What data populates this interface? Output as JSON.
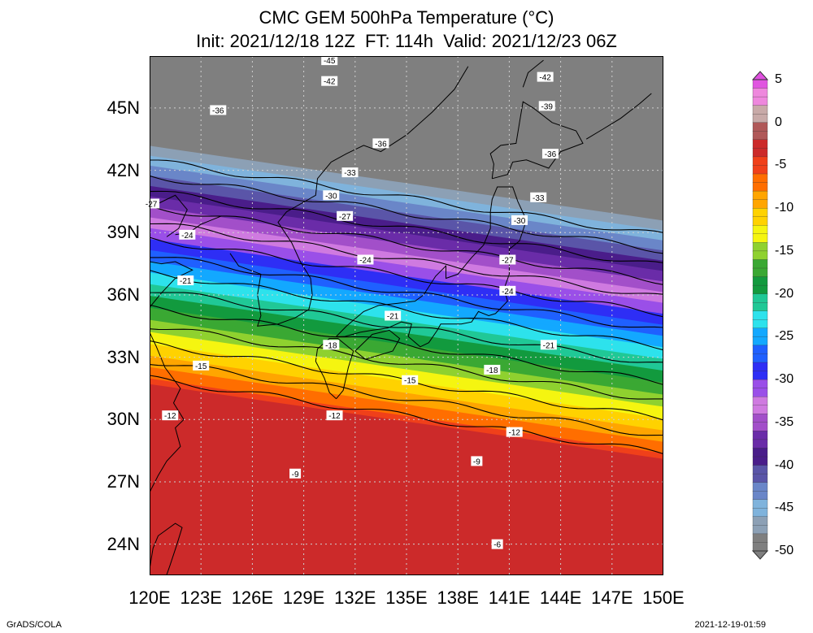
{
  "title": {
    "line1": "CMC GEM 500hPa Temperature (°C)",
    "line2": "Init: 2021/12/18 12Z  FT: 114h  Valid: 2021/12/23 06Z"
  },
  "map": {
    "lon_range": [
      120,
      150
    ],
    "lat_range": [
      22.5,
      47.5
    ],
    "lat_ticks": [
      {
        "value": 45,
        "label": "45N"
      },
      {
        "value": 42,
        "label": "42N"
      },
      {
        "value": 39,
        "label": "39N"
      },
      {
        "value": 36,
        "label": "36N"
      },
      {
        "value": 33,
        "label": "33N"
      },
      {
        "value": 30,
        "label": "30N"
      },
      {
        "value": 27,
        "label": "27N"
      },
      {
        "value": 24,
        "label": "24N"
      }
    ],
    "lon_ticks": [
      {
        "value": 120,
        "label": "120E"
      },
      {
        "value": 123,
        "label": "123E"
      },
      {
        "value": 126,
        "label": "126E"
      },
      {
        "value": 129,
        "label": "129E"
      },
      {
        "value": 132,
        "label": "132E"
      },
      {
        "value": 135,
        "label": "135E"
      },
      {
        "value": 138,
        "label": "138E"
      },
      {
        "value": 141,
        "label": "141E"
      },
      {
        "value": 144,
        "label": "144E"
      },
      {
        "value": 147,
        "label": "147E"
      },
      {
        "value": 150,
        "label": "150E"
      }
    ],
    "contour_labels": [
      {
        "text": "-45",
        "lon": 130.5,
        "lat": 47.3
      },
      {
        "text": "-42",
        "lon": 130.5,
        "lat": 46.3
      },
      {
        "text": "-42",
        "lon": 143.1,
        "lat": 46.5
      },
      {
        "text": "-39",
        "lon": 143.2,
        "lat": 45.1
      },
      {
        "text": "-36",
        "lon": 124.0,
        "lat": 44.9
      },
      {
        "text": "-36",
        "lon": 133.5,
        "lat": 43.3
      },
      {
        "text": "-36",
        "lon": 143.4,
        "lat": 42.8
      },
      {
        "text": "-33",
        "lon": 131.7,
        "lat": 41.9
      },
      {
        "text": "-33",
        "lon": 142.7,
        "lat": 40.7
      },
      {
        "text": "-30",
        "lon": 130.6,
        "lat": 40.8
      },
      {
        "text": "-30",
        "lon": 141.6,
        "lat": 39.6
      },
      {
        "text": "-27",
        "lon": 120.1,
        "lat": 40.4
      },
      {
        "text": "-27",
        "lon": 131.4,
        "lat": 39.8
      },
      {
        "text": "-27",
        "lon": 140.9,
        "lat": 37.7
      },
      {
        "text": "-24",
        "lon": 122.2,
        "lat": 38.9
      },
      {
        "text": "-24",
        "lon": 132.6,
        "lat": 37.7
      },
      {
        "text": "-24",
        "lon": 140.9,
        "lat": 36.2
      },
      {
        "text": "-21",
        "lon": 122.1,
        "lat": 36.7
      },
      {
        "text": "-21",
        "lon": 134.2,
        "lat": 35.0
      },
      {
        "text": "-21",
        "lon": 143.3,
        "lat": 33.6
      },
      {
        "text": "-18",
        "lon": 130.6,
        "lat": 33.6
      },
      {
        "text": "-18",
        "lon": 140.0,
        "lat": 32.4
      },
      {
        "text": "-15",
        "lon": 123.0,
        "lat": 32.6
      },
      {
        "text": "-15",
        "lon": 135.2,
        "lat": 31.9
      },
      {
        "text": "-12",
        "lon": 121.2,
        "lat": 30.2
      },
      {
        "text": "-12",
        "lon": 130.8,
        "lat": 30.2
      },
      {
        "text": "-12",
        "lon": 141.3,
        "lat": 29.4
      },
      {
        "text": "-9",
        "lon": 128.5,
        "lat": 27.4
      },
      {
        "text": "-9",
        "lon": 139.1,
        "lat": 28.0
      },
      {
        "text": "-6",
        "lon": 140.3,
        "lat": 24.0
      }
    ],
    "contour_values": [
      -45,
      -42,
      -39,
      -36,
      -33,
      -30,
      -27,
      -24,
      -21,
      -18,
      -15,
      -12,
      -9,
      -6
    ]
  },
  "colorbar": {
    "labels": [
      "5",
      "0",
      "-5",
      "-10",
      "-15",
      "-20",
      "-25",
      "-30",
      "-35",
      "-40",
      "-45",
      "-50"
    ],
    "min": -50,
    "max": 5,
    "colors": [
      {
        "v": -50,
        "c": "#7f7f7f"
      },
      {
        "v": -48,
        "c": "#8ca0b5"
      },
      {
        "v": -46,
        "c": "#7fb3dc"
      },
      {
        "v": -44,
        "c": "#6a86c8"
      },
      {
        "v": -42,
        "c": "#5a55a8"
      },
      {
        "v": -40,
        "c": "#4a1d8a"
      },
      {
        "v": -38,
        "c": "#6a2ca8"
      },
      {
        "v": -36,
        "c": "#a24fc9"
      },
      {
        "v": -34,
        "c": "#cf7ae0"
      },
      {
        "v": -32,
        "c": "#9a4fe8"
      },
      {
        "v": -30,
        "c": "#2e2ef5"
      },
      {
        "v": -28,
        "c": "#1f60ff"
      },
      {
        "v": -26,
        "c": "#13a8ff"
      },
      {
        "v": -24,
        "c": "#2de2ec"
      },
      {
        "v": -22,
        "c": "#20c896"
      },
      {
        "v": -20,
        "c": "#129a3e"
      },
      {
        "v": -18,
        "c": "#3aa833"
      },
      {
        "v": -16,
        "c": "#8fd12f"
      },
      {
        "v": -14,
        "c": "#f5f510"
      },
      {
        "v": -12,
        "c": "#ffd200"
      },
      {
        "v": -10,
        "c": "#ffa500"
      },
      {
        "v": -8,
        "c": "#ff6e00"
      },
      {
        "v": -6,
        "c": "#f0401a"
      },
      {
        "v": -4,
        "c": "#cc2a2a"
      },
      {
        "v": -2,
        "c": "#b05858"
      },
      {
        "v": 0,
        "c": "#c8aaa8"
      },
      {
        "v": 2,
        "c": "#ee88dd"
      },
      {
        "v": 4,
        "c": "#e055e0"
      },
      {
        "v": 5,
        "c": "#e050e0"
      }
    ]
  },
  "footer": {
    "left": "GrADS/COLA",
    "right": "2021-12-19-01:59"
  }
}
